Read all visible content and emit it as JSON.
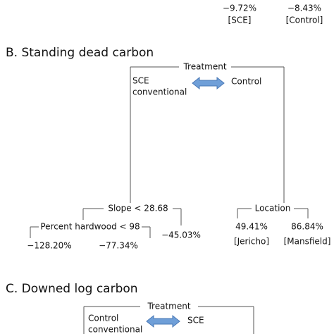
{
  "top_leaves": [
    {
      "value": "−9.72%",
      "label": "[SCE]"
    },
    {
      "value": "−8.43%",
      "label": "[Control]"
    }
  ],
  "panel_b": {
    "title": "B. Standing dead carbon",
    "root": {
      "label": "Treatment",
      "left_group": [
        "SCE",
        "conventional"
      ],
      "right_group": "Control"
    },
    "left_node": {
      "label": "Slope < 28.68",
      "child": {
        "label": "Percent hardwood < 98",
        "leaves": [
          "−128.20%",
          "−77.34%"
        ]
      },
      "leaf": "−45.03%"
    },
    "right_node": {
      "label": "Location",
      "leaves": [
        {
          "value": "49.41%",
          "label": "[Jericho]"
        },
        {
          "value": "86.84%",
          "label": "[Mansfield]"
        }
      ]
    }
  },
  "panel_c": {
    "title": "C. Downed log carbon",
    "root": {
      "label": "Treatment",
      "left_group": [
        "Control",
        "conventional"
      ],
      "right_group": "SCE"
    }
  }
}
